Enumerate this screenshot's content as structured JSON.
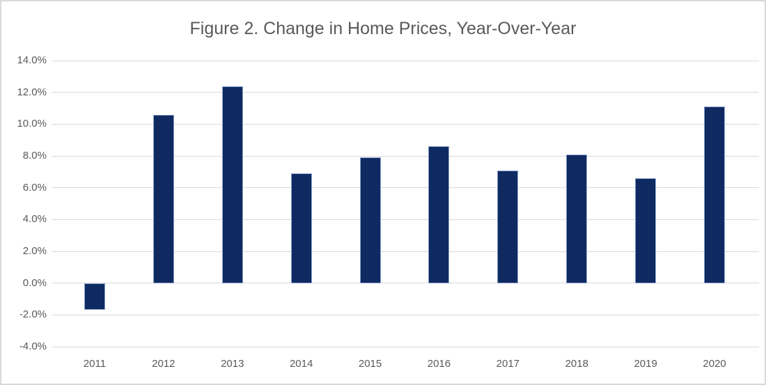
{
  "chart_data": {
    "type": "bar",
    "title": "Figure 2. Change in Home Prices, Year-Over-Year",
    "categories": [
      "2011",
      "2012",
      "2013",
      "2014",
      "2015",
      "2016",
      "2017",
      "2018",
      "2019",
      "2020"
    ],
    "values": [
      -1.7,
      10.6,
      12.4,
      6.9,
      7.9,
      8.6,
      7.1,
      8.1,
      6.6,
      11.1
    ],
    "xlabel": "",
    "ylabel": "",
    "ylim": [
      -4,
      14
    ],
    "ytick_step": 2,
    "ytick_labels": [
      "14.0%",
      "12.0%",
      "10.0%",
      "8.0%",
      "6.0%",
      "4.0%",
      "2.0%",
      "0.0%",
      "-2.0%",
      "-4.0%"
    ],
    "grid": true,
    "legend": "none",
    "colors": {
      "bar_fill": "#0e2a60",
      "bar_border": "#8fa3cc",
      "gridline": "#d9d9d9",
      "text": "#595959",
      "frame_border": "#d9d9d9",
      "background": "#ffffff"
    }
  }
}
